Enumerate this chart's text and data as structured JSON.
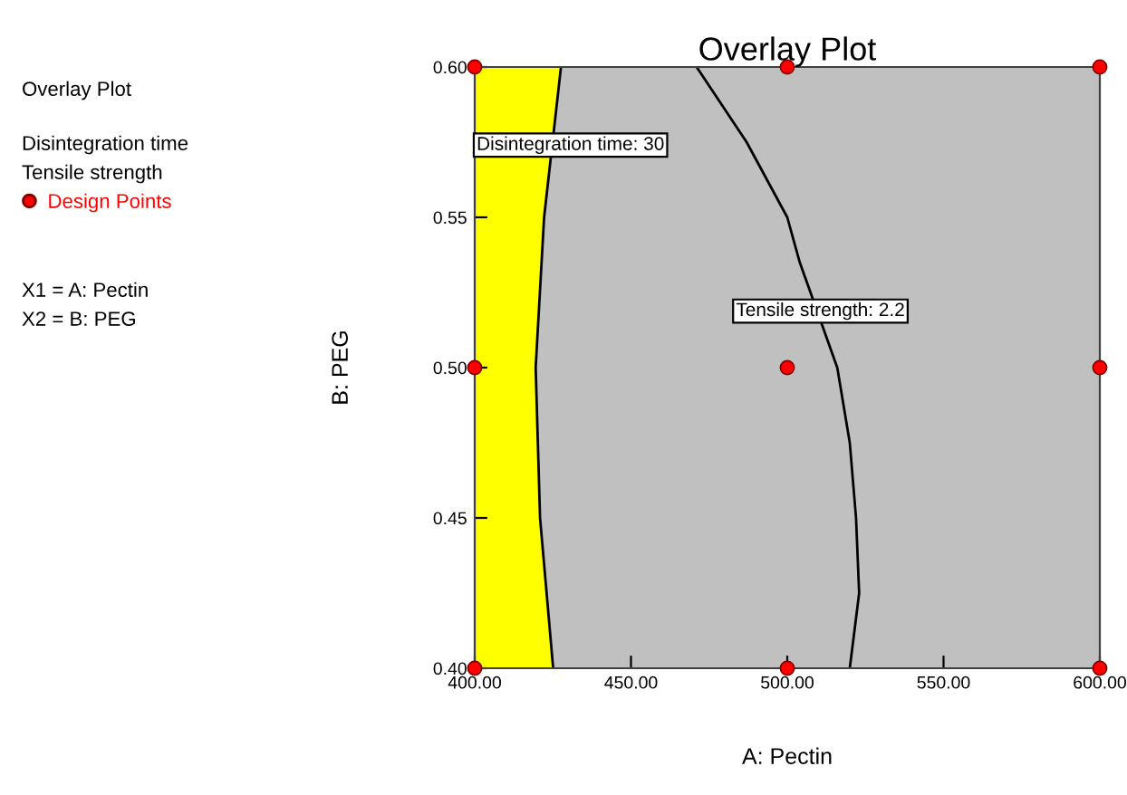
{
  "chart_data": {
    "type": "scatter",
    "title": "Overlay Plot",
    "xlabel": "A: Pectin",
    "ylabel": "B: PEG",
    "xlim": [
      400,
      600
    ],
    "ylim": [
      0.4,
      0.6
    ],
    "xticks": [
      {
        "value": 400,
        "label": "400.00"
      },
      {
        "value": 450,
        "label": "450.00"
      },
      {
        "value": 500,
        "label": "500.00"
      },
      {
        "value": 550,
        "label": "550.00"
      },
      {
        "value": 600,
        "label": "600.00"
      }
    ],
    "yticks": [
      {
        "value": 0.4,
        "label": "0.40"
      },
      {
        "value": 0.45,
        "label": "0.45"
      },
      {
        "value": 0.5,
        "label": "0.50"
      },
      {
        "value": 0.55,
        "label": "0.55"
      },
      {
        "value": 0.6,
        "label": "0.60"
      }
    ],
    "bands": [
      {
        "axis": "x",
        "from": 400,
        "to": 600,
        "color": "#c0c0c0"
      }
    ],
    "series": [
      {
        "type": "line",
        "name": "Disintegration time: 30",
        "color": "#000000",
        "x": [
          425.1,
          420.9,
          419.5,
          422.2,
          427.6
        ],
        "values": [
          0.4,
          0.45,
          0.5,
          0.55,
          0.6
        ]
      },
      {
        "type": "line",
        "name": "Tensile strength: 2.2",
        "color": "#000000",
        "x": [
          520,
          523,
          522,
          520,
          516,
          504,
          500,
          487,
          471
        ],
        "values": [
          0.4,
          0.425,
          0.45,
          0.475,
          0.5,
          0.535,
          0.55,
          0.575,
          0.6
        ]
      },
      {
        "name": "Design Points",
        "color": "#ff0000",
        "marker": "circle",
        "x": [
          400,
          400,
          400,
          500,
          500,
          500,
          600,
          600,
          600
        ],
        "values": [
          0.4,
          0.5,
          0.6,
          0.4,
          0.5,
          0.6,
          0.4,
          0.5,
          0.6
        ]
      }
    ],
    "legend": "left",
    "grid": false,
    "annotations": [
      "Overlay Plot",
      "Disintegration time",
      "Tensile strength",
      "X1 = A: Pectin",
      "X2 = B: PEG"
    ]
  }
}
